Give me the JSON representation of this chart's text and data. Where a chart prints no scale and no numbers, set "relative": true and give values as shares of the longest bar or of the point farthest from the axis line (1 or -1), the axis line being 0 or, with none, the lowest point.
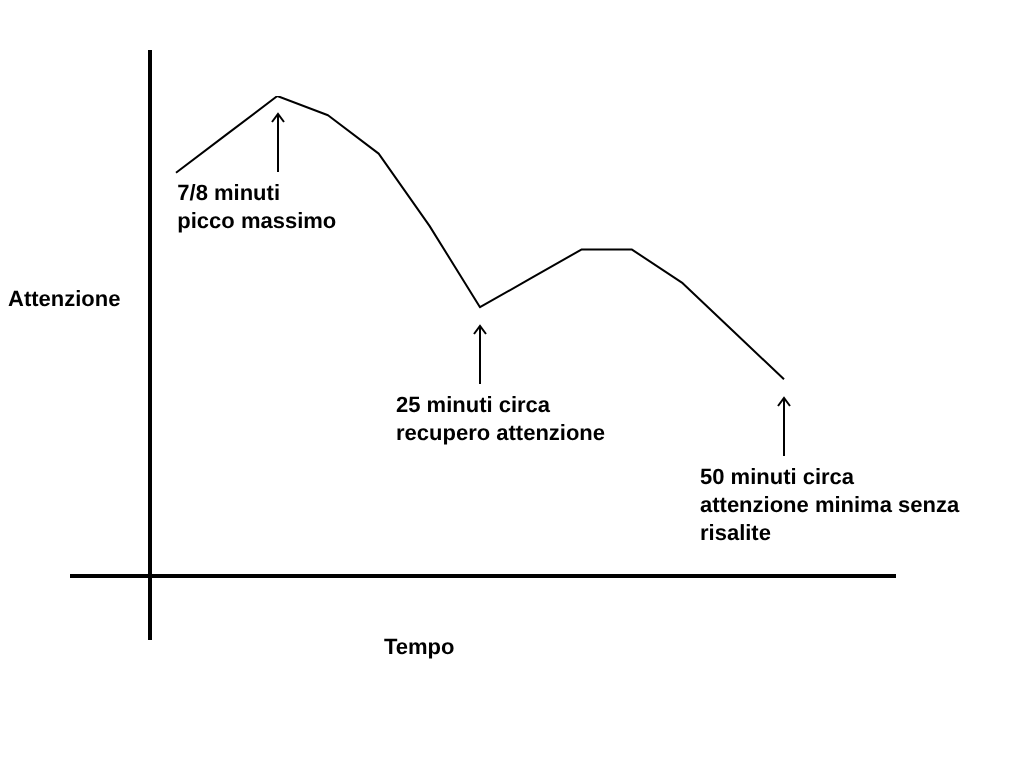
{
  "chart_data": {
    "type": "line",
    "relative": true,
    "xlabel": "Tempo",
    "ylabel": "Attenzione",
    "color": "#000000",
    "marker": "none",
    "legend": false,
    "categories": [
      null,
      null,
      null,
      null,
      null,
      null,
      null,
      null,
      null,
      null,
      null,
      null,
      null
    ],
    "values": [
      0.84,
      0.92,
      1,
      0.96,
      0.88,
      0.73,
      0.56,
      0.62,
      0.68,
      0.68,
      0.61,
      0.51,
      0.41
    ],
    "annotations": [
      "7/8 minuti\npicco massimo",
      "25 minuti circa\nrecupero attenzione",
      "50 minuti circa\nattenzione minima senza\nrisalite"
    ]
  }
}
